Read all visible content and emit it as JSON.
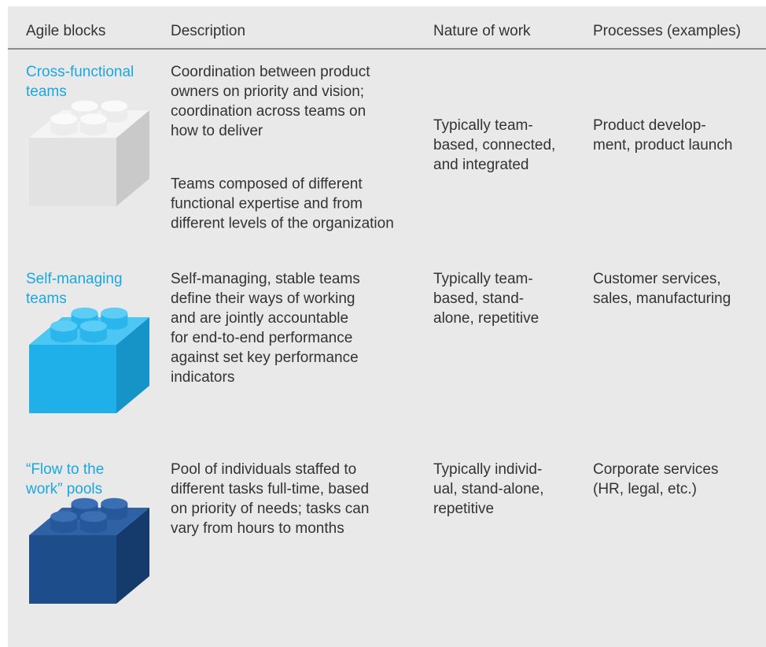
{
  "header": [
    "Agile blocks",
    "Description",
    "Nature of work",
    "Processes (examples)"
  ],
  "rows": [
    {
      "name": [
        "Cross-functional",
        "teams"
      ],
      "description": [
        [
          "Coordination between product",
          "owners on priority and vision;",
          "coordination across teams on",
          "how to deliver"
        ],
        [
          "Teams composed of different",
          "functional expertise and from",
          "different levels of the organization"
        ]
      ],
      "nature": [
        "Typically team-",
        "based, connected,",
        "and integrated"
      ],
      "processes": [
        "Product develop-",
        "ment, product launch"
      ]
    },
    {
      "name": [
        "Self-managing",
        "teams"
      ],
      "description": [
        [
          "Self-managing, stable teams",
          "define their ways of working",
          "and are jointly accountable",
          "for end-to-end performance",
          "against set key performance",
          "indicators"
        ]
      ],
      "nature": [
        "Typically team-",
        "based, stand-",
        "alone, repetitive"
      ],
      "processes": [
        "Customer services,",
        "sales, manufacturing"
      ]
    },
    {
      "name": [
        "“Flow to the",
        "work” pools"
      ],
      "description": [
        [
          "Pool of individuals staffed to",
          "different tasks full-time, based",
          "on priority of needs; tasks can",
          "vary from hours to months"
        ]
      ],
      "nature": [
        "Typically individ-",
        "ual, stand-alone,",
        "repetitive"
      ],
      "processes": [
        "Corporate services",
        "(HR, legal, etc.)"
      ]
    }
  ]
}
